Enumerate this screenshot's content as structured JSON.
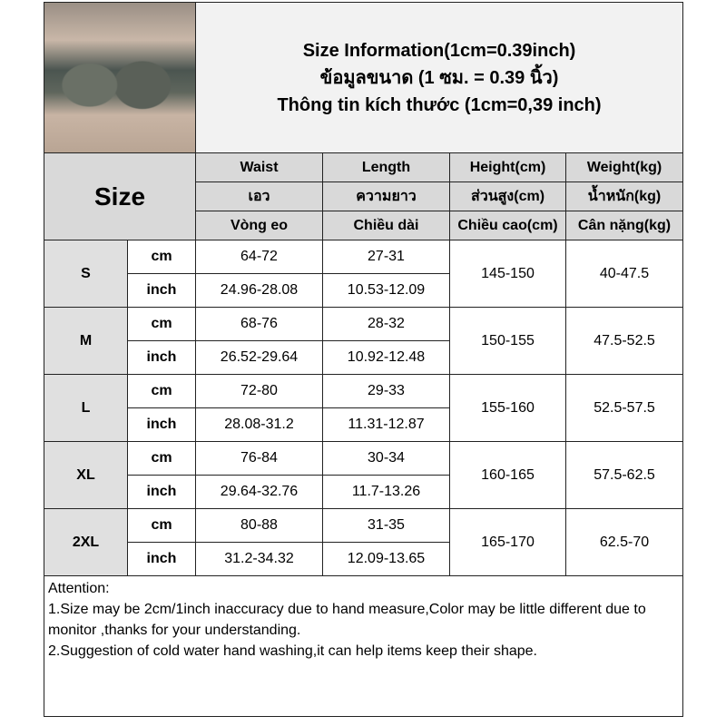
{
  "title": {
    "line1": "Size Information(1cm=0.39inch)",
    "line2": "ข้อมูลขนาด (1 ซม. = 0.39 นิ้ว)",
    "line3": "Thông tin kích thước (1cm=0,39 inch)"
  },
  "size_label": "Size",
  "headers": [
    [
      "Waist",
      "Length",
      "Height(cm)",
      "Weight(kg)"
    ],
    [
      "เอว",
      "ความยาว",
      "ส่วนสูง(cm)",
      "น้ำหนัก(kg)"
    ],
    [
      "Vòng eo",
      "Chiều dài",
      "Chiều cao(cm)",
      "Cân nặng(kg)"
    ]
  ],
  "units": {
    "cm": "cm",
    "inch": "inch"
  },
  "rows": [
    {
      "size": "S",
      "cm": {
        "waist": "64-72",
        "length": "27-31"
      },
      "inch": {
        "waist": "24.96-28.08",
        "length": "10.53-12.09"
      },
      "height": "145-150",
      "weight": "40-47.5"
    },
    {
      "size": "M",
      "cm": {
        "waist": "68-76",
        "length": "28-32"
      },
      "inch": {
        "waist": "26.52-29.64",
        "length": "10.92-12.48"
      },
      "height": "150-155",
      "weight": "47.5-52.5"
    },
    {
      "size": "L",
      "cm": {
        "waist": "72-80",
        "length": "29-33"
      },
      "inch": {
        "waist": "28.08-31.2",
        "length": "11.31-12.87"
      },
      "height": "155-160",
      "weight": "52.5-57.5"
    },
    {
      "size": "XL",
      "cm": {
        "waist": "76-84",
        "length": "30-34"
      },
      "inch": {
        "waist": "29.64-32.76",
        "length": "11.7-13.26"
      },
      "height": "160-165",
      "weight": "57.5-62.5"
    },
    {
      "size": "2XL",
      "cm": {
        "waist": "80-88",
        "length": "31-35"
      },
      "inch": {
        "waist": "31.2-34.32",
        "length": "12.09-13.65"
      },
      "height": "165-170",
      "weight": "62.5-70"
    }
  ],
  "attention": {
    "heading": "Attention:",
    "note1": "1.Size may be 2cm/1inch inaccuracy due to hand measure,Color may be little different due to monitor ,thanks for your understanding.",
    "note2": "2.Suggestion of cold water hand washing,it can help items keep their shape."
  }
}
